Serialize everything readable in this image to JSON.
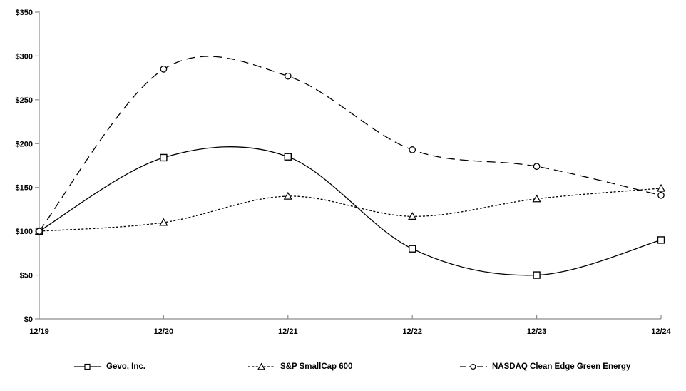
{
  "chart_data": {
    "type": "line",
    "smooth": true,
    "title": "",
    "xlabel": "",
    "ylabel": "",
    "grid": false,
    "legend_position": "bottom",
    "categories": [
      "12/19",
      "12/20",
      "12/21",
      "12/22",
      "12/23",
      "12/24"
    ],
    "series": [
      {
        "name": "Gevo, Inc.",
        "values": [
          100,
          184,
          185,
          80,
          50,
          90
        ],
        "line_style": "solid",
        "marker": "square"
      },
      {
        "name": "S&P SmallCap 600",
        "values": [
          100,
          110,
          140,
          117,
          137,
          149
        ],
        "line_style": "short-dash",
        "marker": "triangle"
      },
      {
        "name": "NASDAQ Clean Edge Green Energy",
        "values": [
          100,
          285,
          277,
          193,
          174,
          141
        ],
        "line_style": "long-dash",
        "marker": "circle"
      }
    ],
    "y_axis": {
      "min": 0,
      "max": 350,
      "step": 50,
      "tick_labels": [
        "$0",
        "$50",
        "$100",
        "$150",
        "$200",
        "$250",
        "$300",
        "$350"
      ]
    },
    "colors": {
      "series_line": "#000000",
      "marker_fill": "#ffffff",
      "axis_line": "#8c8c8c",
      "label_text": "#000000",
      "background": "#ffffff"
    }
  }
}
